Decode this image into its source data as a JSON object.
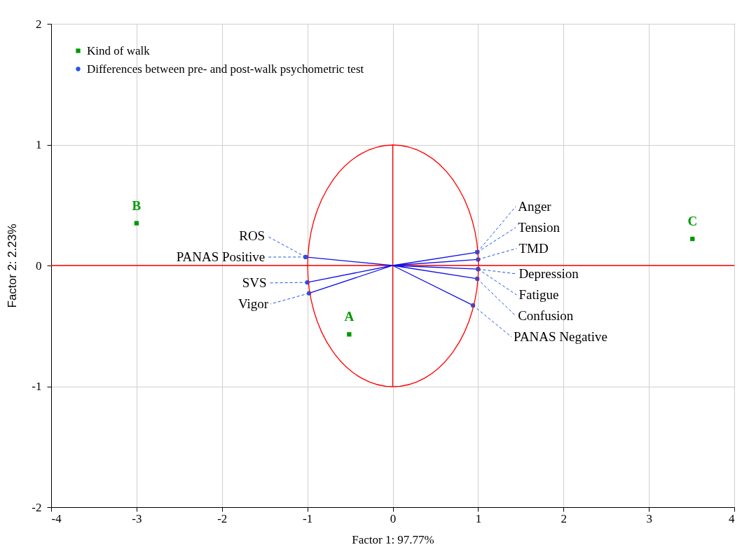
{
  "chart_data": {
    "type": "scatter",
    "xlabel": "Factor 1: 97.77%",
    "ylabel": "Factor 2: 2.23%",
    "xlim": [
      -4,
      4
    ],
    "ylim": [
      -2,
      2
    ],
    "xticks": [
      -4,
      -3,
      -2,
      -1,
      0,
      1,
      2,
      3,
      4
    ],
    "yticks": [
      -2,
      -1,
      0,
      1,
      2
    ],
    "grid": true,
    "legend": "top left",
    "ref_lines": [
      {
        "axis": "y",
        "value": 0,
        "color": "#ff0000"
      }
    ],
    "series": [
      {
        "type": "line",
        "color": "#ff0000",
        "x": [
          0,
          0
        ],
        "values": [
          -1,
          1
        ]
      },
      {
        "type": "line",
        "color": "#1010e8",
        "x": [
          0,
          -1.02,
          0,
          -1.0,
          0,
          -0.98,
          0,
          0.99,
          0,
          1.0,
          0,
          1.0,
          0,
          0.99,
          0,
          0.94
        ],
        "values": [
          0,
          0.07,
          0,
          -0.14,
          0,
          -0.23,
          0,
          0.11,
          0,
          0.05,
          0,
          -0.03,
          0,
          -0.11,
          0,
          -0.33
        ]
      },
      {
        "name": "Kind of walk",
        "color": "#009900",
        "marker": "square",
        "x": [
          -0.51,
          -3.0,
          3.51
        ],
        "values": [
          -0.57,
          0.35,
          0.22
        ],
        "value_labels": [
          "A",
          "B",
          "C"
        ]
      },
      {
        "name": "Differences between pre- and post-walk psychometric test",
        "color": "#1f55f0",
        "marker": "circle",
        "x": [
          -1.02,
          -1.02,
          -1.0,
          -0.98,
          0.99,
          0.99,
          1.0,
          1.0,
          1.0,
          0.99,
          0.94
        ],
        "values": [
          0.07,
          0.07,
          -0.14,
          -0.23,
          0.11,
          0.11,
          0.05,
          -0.03,
          -0.03,
          -0.11,
          -0.33
        ],
        "value_labels": [
          "ROS",
          "PANAS Positive",
          "SVS",
          "Vigor",
          "Anger",
          "Tension",
          "TMD",
          "Depression",
          "Fatigue",
          "Confusion",
          "PANAS Negative"
        ]
      }
    ]
  }
}
